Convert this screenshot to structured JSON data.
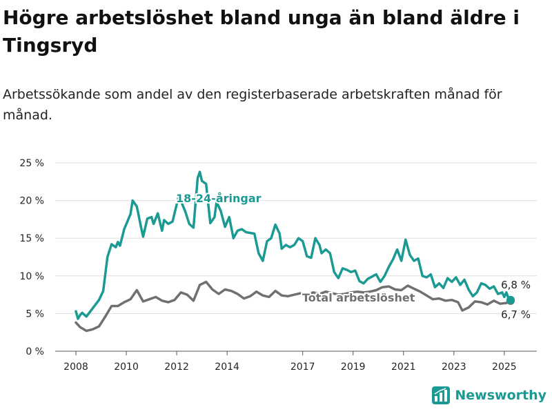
{
  "title": "Högre arbetslöshet bland unga än bland äldre i Tingsryd",
  "subtitle": "Arbetssökande som andel av den registerbaserade arbetskraften månad för månad.",
  "brand": {
    "name": "Newsworthy",
    "icon": "newsworthy-logo-icon",
    "color": "#1a9a92"
  },
  "chart_data": {
    "type": "line",
    "title": "Högre arbetslöshet bland unga än bland äldre i Tingsryd",
    "subtitle": "Arbetssökande som andel av den registerbaserade arbetskraften månad för månad.",
    "xlabel": "",
    "ylabel": "",
    "x_range": [
      "2008-01",
      "2025-04"
    ],
    "ylim": [
      0,
      25
    ],
    "y_ticks": [
      0,
      5,
      10,
      15,
      20,
      25
    ],
    "y_tick_labels": [
      "0 %",
      "5 %",
      "10 %",
      "15 %",
      "20 %",
      "25 %"
    ],
    "x_ticks": [
      2008,
      2010,
      2012,
      2014,
      2017,
      2019,
      2021,
      2023,
      2025
    ],
    "x_tick_labels": [
      "2008",
      "2010",
      "2012",
      "2014",
      "2017",
      "2019",
      "2021",
      "2023",
      "2025"
    ],
    "grid": "horizontal",
    "series": [
      {
        "name": "18-24-åringar",
        "color": "#1a9a92",
        "end_label": "6,8 %",
        "points": [
          [
            "2008-01",
            5.3
          ],
          [
            "2008-02",
            4.3
          ],
          [
            "2008-03",
            4.8
          ],
          [
            "2008-04",
            5.1
          ],
          [
            "2008-06",
            4.6
          ],
          [
            "2008-09",
            5.7
          ],
          [
            "2008-12",
            6.8
          ],
          [
            "2009-02",
            8.0
          ],
          [
            "2009-04",
            12.5
          ],
          [
            "2009-06",
            14.2
          ],
          [
            "2009-08",
            13.8
          ],
          [
            "2009-09",
            14.5
          ],
          [
            "2009-10",
            14.0
          ],
          [
            "2009-12",
            16.2
          ],
          [
            "2010-03",
            18.2
          ],
          [
            "2010-04",
            20.0
          ],
          [
            "2010-06",
            19.2
          ],
          [
            "2010-08",
            16.5
          ],
          [
            "2010-09",
            15.2
          ],
          [
            "2010-11",
            17.6
          ],
          [
            "2011-01",
            17.8
          ],
          [
            "2011-02",
            16.9
          ],
          [
            "2011-04",
            18.3
          ],
          [
            "2011-06",
            16.0
          ],
          [
            "2011-07",
            17.4
          ],
          [
            "2011-09",
            16.9
          ],
          [
            "2011-11",
            17.2
          ],
          [
            "2012-02",
            20.6
          ],
          [
            "2012-05",
            18.6
          ],
          [
            "2012-07",
            16.9
          ],
          [
            "2012-09",
            16.4
          ],
          [
            "2012-11",
            23.0
          ],
          [
            "2012-12",
            23.8
          ],
          [
            "2013-01",
            22.6
          ],
          [
            "2013-03",
            22.2
          ],
          [
            "2013-05",
            17.0
          ],
          [
            "2013-07",
            17.8
          ],
          [
            "2013-08",
            19.8
          ],
          [
            "2013-10",
            18.6
          ],
          [
            "2013-12",
            16.5
          ],
          [
            "2014-02",
            17.8
          ],
          [
            "2014-04",
            15.0
          ],
          [
            "2014-06",
            16.0
          ],
          [
            "2014-08",
            16.2
          ],
          [
            "2014-10",
            15.8
          ],
          [
            "2015-02",
            15.6
          ],
          [
            "2015-04",
            13.0
          ],
          [
            "2015-06",
            12.0
          ],
          [
            "2015-08",
            14.6
          ],
          [
            "2015-10",
            15.0
          ],
          [
            "2015-12",
            16.8
          ],
          [
            "2016-02",
            15.6
          ],
          [
            "2016-03",
            13.6
          ],
          [
            "2016-05",
            14.1
          ],
          [
            "2016-07",
            13.8
          ],
          [
            "2016-09",
            14.1
          ],
          [
            "2016-11",
            15.0
          ],
          [
            "2017-01",
            14.6
          ],
          [
            "2017-03",
            12.6
          ],
          [
            "2017-05",
            12.4
          ],
          [
            "2017-07",
            15.0
          ],
          [
            "2017-09",
            14.1
          ],
          [
            "2017-10",
            13.0
          ],
          [
            "2017-12",
            13.5
          ],
          [
            "2018-02",
            13.0
          ],
          [
            "2018-04",
            10.5
          ],
          [
            "2018-06",
            9.7
          ],
          [
            "2018-08",
            11.0
          ],
          [
            "2018-10",
            10.8
          ],
          [
            "2018-12",
            10.5
          ],
          [
            "2019-02",
            10.7
          ],
          [
            "2019-04",
            9.3
          ],
          [
            "2019-06",
            9.0
          ],
          [
            "2019-08",
            9.6
          ],
          [
            "2019-10",
            9.9
          ],
          [
            "2019-12",
            10.2
          ],
          [
            "2020-02",
            9.2
          ],
          [
            "2020-04",
            10.0
          ],
          [
            "2020-06",
            11.2
          ],
          [
            "2020-08",
            12.2
          ],
          [
            "2020-10",
            13.5
          ],
          [
            "2020-12",
            12.0
          ],
          [
            "2021-02",
            14.8
          ],
          [
            "2021-04",
            12.8
          ],
          [
            "2021-06",
            12.0
          ],
          [
            "2021-08",
            12.3
          ],
          [
            "2021-10",
            10.0
          ],
          [
            "2021-12",
            9.8
          ],
          [
            "2022-02",
            10.2
          ],
          [
            "2022-04",
            8.5
          ],
          [
            "2022-06",
            9.0
          ],
          [
            "2022-08",
            8.4
          ],
          [
            "2022-10",
            9.7
          ],
          [
            "2022-12",
            9.2
          ],
          [
            "2023-02",
            9.8
          ],
          [
            "2023-04",
            8.8
          ],
          [
            "2023-06",
            9.5
          ],
          [
            "2023-08",
            8.2
          ],
          [
            "2023-10",
            7.3
          ],
          [
            "2023-12",
            7.8
          ],
          [
            "2024-02",
            9.0
          ],
          [
            "2024-04",
            8.8
          ],
          [
            "2024-06",
            8.3
          ],
          [
            "2024-08",
            8.6
          ],
          [
            "2024-10",
            7.6
          ],
          [
            "2024-12",
            7.8
          ],
          [
            "2025-01",
            7.2
          ],
          [
            "2025-02",
            7.8
          ],
          [
            "2025-03",
            7.0
          ],
          [
            "2025-04",
            6.8
          ]
        ]
      },
      {
        "name": "Total arbetslöshet",
        "color": "#707070",
        "end_label": "6,7 %",
        "points": [
          [
            "2008-01",
            3.8
          ],
          [
            "2008-03",
            3.2
          ],
          [
            "2008-06",
            2.7
          ],
          [
            "2008-09",
            2.9
          ],
          [
            "2008-12",
            3.3
          ],
          [
            "2009-03",
            4.6
          ],
          [
            "2009-06",
            6.0
          ],
          [
            "2009-09",
            6.0
          ],
          [
            "2009-12",
            6.5
          ],
          [
            "2010-03",
            6.9
          ],
          [
            "2010-06",
            8.1
          ],
          [
            "2010-09",
            6.6
          ],
          [
            "2010-12",
            6.9
          ],
          [
            "2011-03",
            7.2
          ],
          [
            "2011-06",
            6.7
          ],
          [
            "2011-09",
            6.5
          ],
          [
            "2011-12",
            6.8
          ],
          [
            "2012-03",
            7.8
          ],
          [
            "2012-06",
            7.5
          ],
          [
            "2012-09",
            6.7
          ],
          [
            "2012-12",
            8.8
          ],
          [
            "2013-03",
            9.2
          ],
          [
            "2013-06",
            8.2
          ],
          [
            "2013-09",
            7.6
          ],
          [
            "2013-12",
            8.2
          ],
          [
            "2014-03",
            8.0
          ],
          [
            "2014-06",
            7.6
          ],
          [
            "2014-09",
            7.0
          ],
          [
            "2014-12",
            7.3
          ],
          [
            "2015-03",
            7.9
          ],
          [
            "2015-06",
            7.4
          ],
          [
            "2015-09",
            7.2
          ],
          [
            "2015-12",
            8.0
          ],
          [
            "2016-03",
            7.4
          ],
          [
            "2016-06",
            7.3
          ],
          [
            "2016-09",
            7.5
          ],
          [
            "2016-12",
            7.7
          ],
          [
            "2017-03",
            7.5
          ],
          [
            "2017-06",
            7.8
          ],
          [
            "2017-09",
            7.6
          ],
          [
            "2017-12",
            7.9
          ],
          [
            "2018-03",
            7.7
          ],
          [
            "2018-06",
            7.5
          ],
          [
            "2018-09",
            7.6
          ],
          [
            "2018-12",
            7.8
          ],
          [
            "2019-03",
            7.9
          ],
          [
            "2019-06",
            7.8
          ],
          [
            "2019-09",
            7.9
          ],
          [
            "2019-12",
            8.1
          ],
          [
            "2020-03",
            8.5
          ],
          [
            "2020-06",
            8.6
          ],
          [
            "2020-09",
            8.2
          ],
          [
            "2020-12",
            8.1
          ],
          [
            "2021-03",
            8.7
          ],
          [
            "2021-06",
            8.3
          ],
          [
            "2021-09",
            7.9
          ],
          [
            "2021-12",
            7.4
          ],
          [
            "2022-03",
            6.9
          ],
          [
            "2022-06",
            7.0
          ],
          [
            "2022-09",
            6.7
          ],
          [
            "2022-12",
            6.8
          ],
          [
            "2023-03",
            6.5
          ],
          [
            "2023-05",
            5.4
          ],
          [
            "2023-08",
            5.8
          ],
          [
            "2023-11",
            6.6
          ],
          [
            "2024-02",
            6.5
          ],
          [
            "2024-05",
            6.2
          ],
          [
            "2024-08",
            6.7
          ],
          [
            "2024-11",
            6.3
          ],
          [
            "2025-02",
            6.4
          ],
          [
            "2025-04",
            6.7
          ]
        ]
      }
    ]
  }
}
